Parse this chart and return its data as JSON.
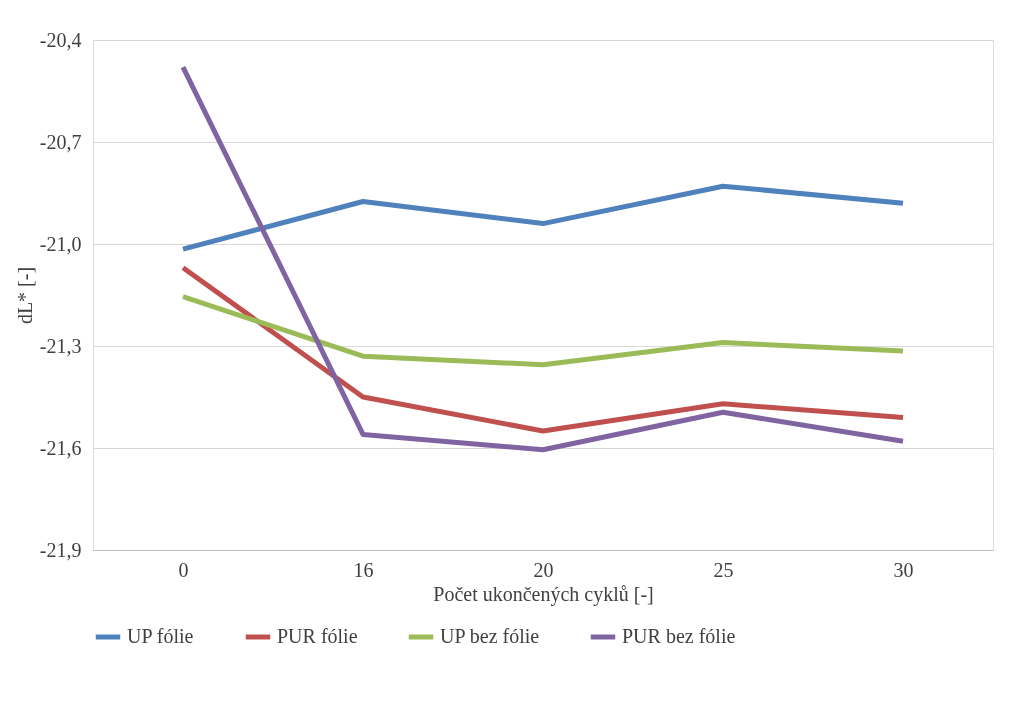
{
  "chart_data": {
    "type": "line",
    "xlabel": "Počet ukončených cyklů [-]",
    "ylabel": "dL* [-]",
    "categories": [
      "0",
      "16",
      "20",
      "25",
      "30"
    ],
    "ylim": [
      -21.9,
      -20.4
    ],
    "yticks": [
      {
        "value": -21.9,
        "label": "-21,9"
      },
      {
        "value": -21.6,
        "label": "-21,6"
      },
      {
        "value": -21.3,
        "label": "-21,3"
      },
      {
        "value": -21.0,
        "label": "-21,0"
      },
      {
        "value": -20.7,
        "label": "-20,7"
      },
      {
        "value": -20.4,
        "label": "-20,4"
      }
    ],
    "series": [
      {
        "name": "UP fólie",
        "color": "#4f81bd",
        "values": [
          -21.015,
          -20.875,
          -20.94,
          -20.83,
          -20.88
        ]
      },
      {
        "name": "PUR fólie",
        "color": "#c0504d",
        "values": [
          -21.07,
          -21.45,
          -21.55,
          -21.47,
          -21.51
        ]
      },
      {
        "name": "UP bez fólie",
        "color": "#9bbb59",
        "values": [
          -21.155,
          -21.33,
          -21.355,
          -21.29,
          -21.315
        ]
      },
      {
        "name": "PUR bez fólie",
        "color": "#8064a2",
        "values": [
          -20.48,
          -21.56,
          -21.605,
          -21.495,
          -21.58
        ]
      }
    ],
    "grid": "y",
    "legend": "bottom",
    "marker": "none",
    "line_style": "solid"
  }
}
